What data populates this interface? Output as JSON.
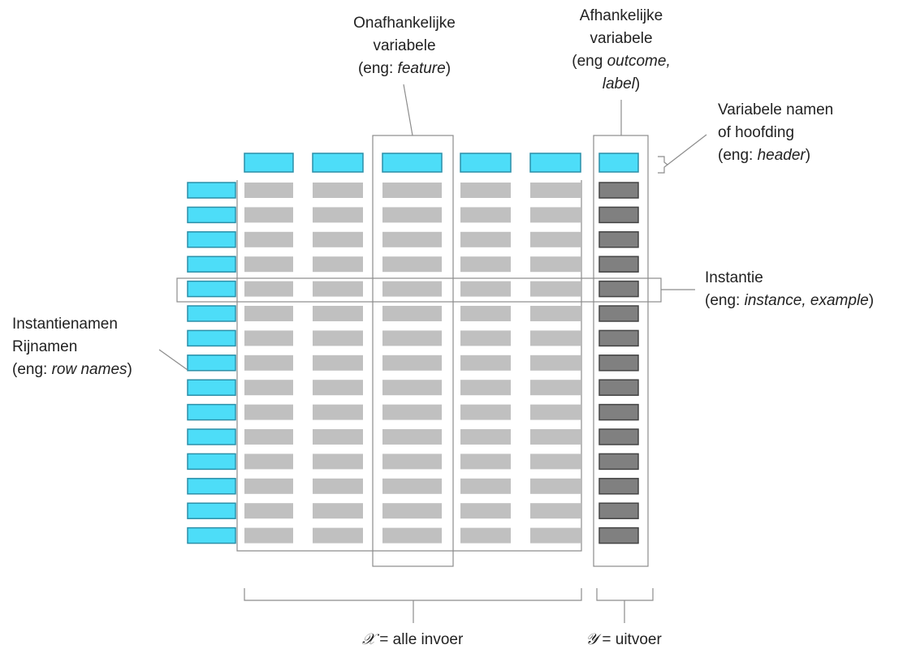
{
  "colors": {
    "header_cell": "#4DDDF8",
    "header_cell_border": "#2B8FA8",
    "feature_cell": "#C0C0C0",
    "outcome_cell": "#808080",
    "outcome_cell_border": "#444444",
    "row_name_cell": "#4DDDF8",
    "annotation_line": "#8C8C8C"
  },
  "grid": {
    "feature_columns": 5,
    "outcome_columns": 1,
    "rows": 15,
    "has_header_row": true,
    "has_row_names": true
  },
  "labels": {
    "feature": {
      "line1": "Onafhankelijke",
      "line2": "variabele",
      "line3_prefix": "(eng: ",
      "line3_italic": "feature",
      "line3_suffix": ")"
    },
    "outcome": {
      "line1": "Afhankelijke",
      "line2": "variabele",
      "line3_prefix": "(eng ",
      "line3_italic": "outcome,",
      "line4_italic": "label",
      "line4_suffix": ")"
    },
    "header": {
      "line1": "Variabele namen",
      "line2": "of hoofding",
      "line3_prefix": "(eng: ",
      "line3_italic": "header",
      "line3_suffix": ")"
    },
    "instance": {
      "line1": "Instantie",
      "line2_prefix": "(eng: ",
      "line2_italic": "instance, example",
      "line2_suffix": ")"
    },
    "row_names": {
      "line1": "Instantienamen",
      "line2": "Rijnamen",
      "line3_prefix": "(eng: ",
      "line3_italic": "row names",
      "line3_suffix": ")"
    },
    "x_brace": {
      "symbol": "𝒳",
      "text": " = alle invoer"
    },
    "y_brace": {
      "symbol": "𝒴",
      "text": " = uitvoer"
    }
  }
}
